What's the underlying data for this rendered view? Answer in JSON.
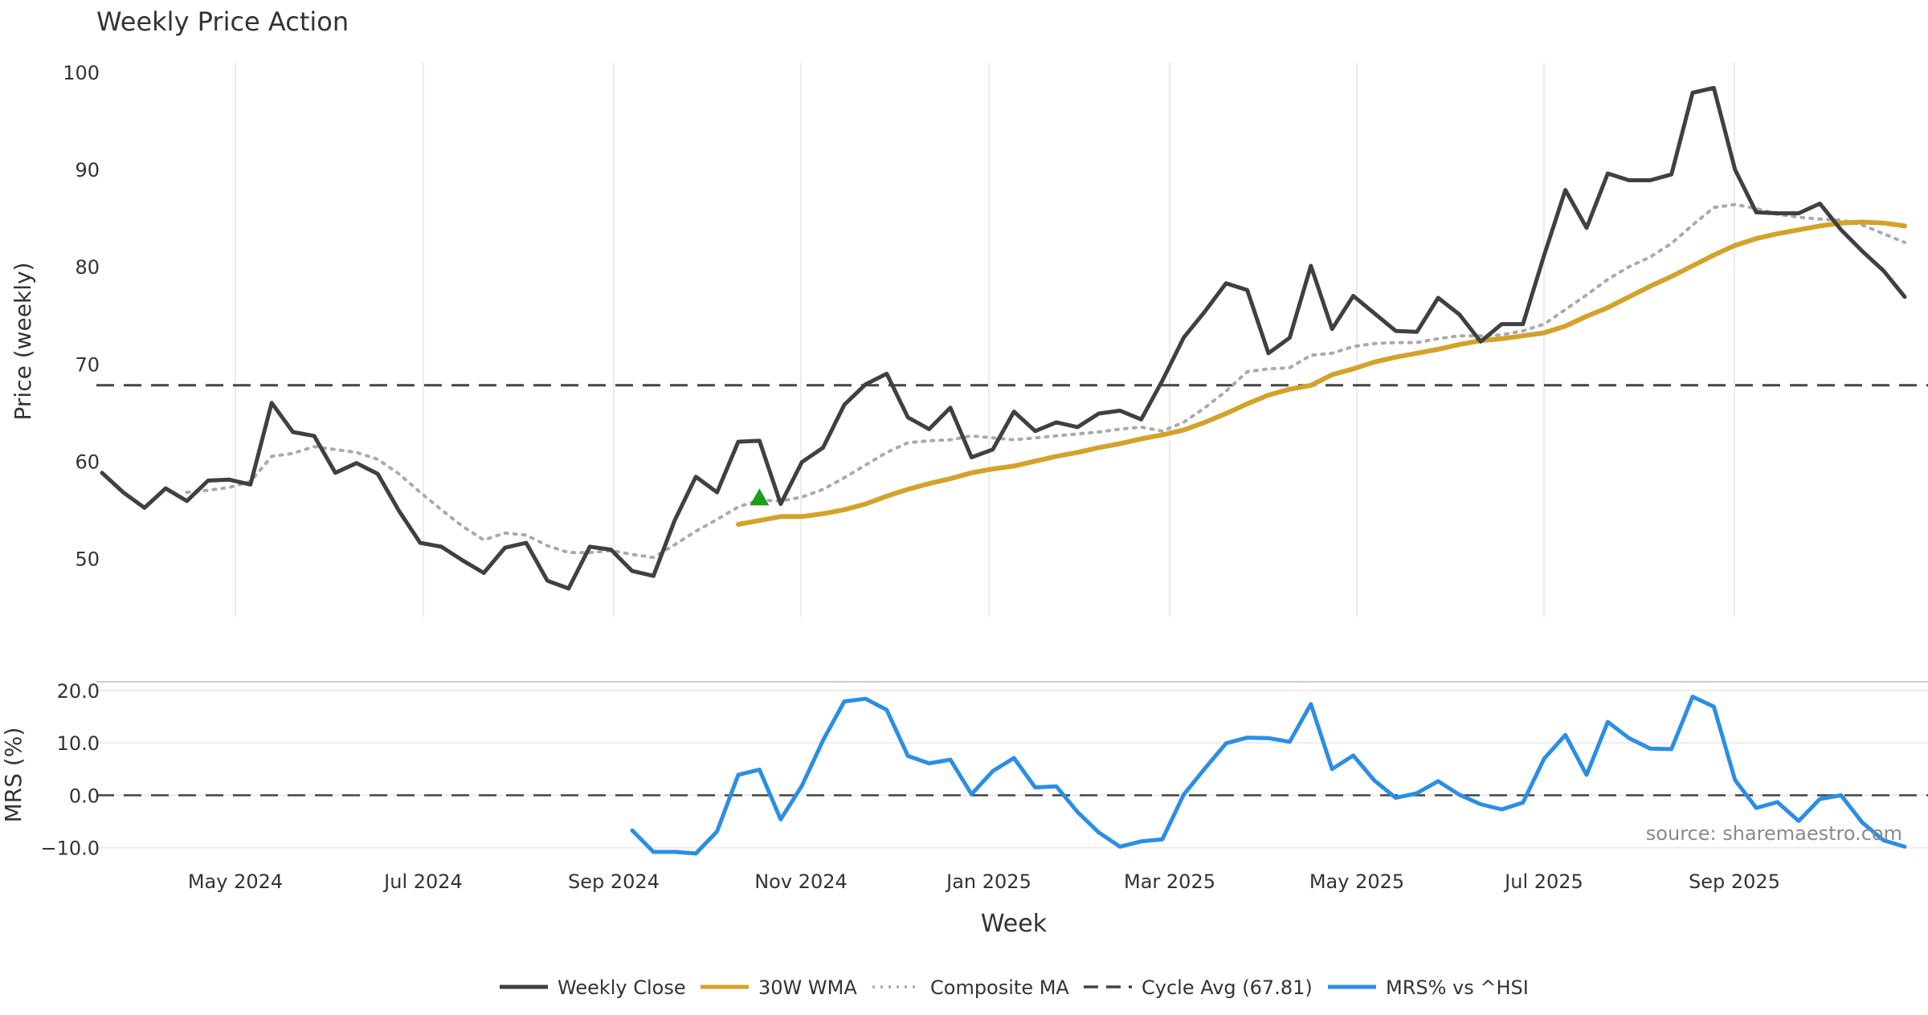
{
  "chart_data": {
    "type": "line",
    "title": "Weekly Price Action",
    "source": "source: sharemaestro.com",
    "xlabel": "Week",
    "x_ticks": [
      "May 2024",
      "Jul 2024",
      "Sep 2024",
      "Nov 2024",
      "Jan 2025",
      "Mar 2025",
      "May 2025",
      "Jul 2025",
      "Sep 2025"
    ],
    "price_panel": {
      "ylabel": "Price (weekly)",
      "ylim": [
        44,
        101
      ],
      "y_ticks": [
        50,
        60,
        70,
        80,
        90,
        100
      ],
      "cycle_avg": 67.81,
      "series": [
        {
          "name": "Weekly Close",
          "color": "#404040",
          "style": "solid",
          "start_index": 0,
          "values": [
            58.8,
            56.8,
            55.2,
            57.2,
            55.9,
            58.0,
            58.1,
            57.6,
            66.0,
            63.0,
            62.6,
            58.8,
            59.8,
            58.7,
            54.9,
            51.6,
            51.2,
            49.8,
            48.5,
            51.1,
            51.6,
            47.7,
            46.9,
            51.2,
            50.9,
            48.7,
            48.2,
            53.9,
            58.4,
            56.8,
            62.0,
            62.1,
            55.6,
            59.9,
            61.4,
            65.8,
            67.9,
            69.0,
            64.5,
            63.3,
            65.5,
            60.4,
            61.2,
            65.1,
            63.1,
            64.0,
            63.5,
            64.9,
            65.2,
            64.3,
            68.3,
            72.7,
            75.4,
            78.3,
            77.6,
            71.1,
            72.7,
            80.1,
            73.6,
            77.0,
            75.2,
            73.4,
            73.3,
            76.8,
            75.1,
            72.3,
            74.1,
            74.1,
            81.2,
            87.9,
            84.0,
            89.6,
            88.9,
            88.9,
            89.5,
            97.9,
            98.4,
            90.0,
            85.6,
            85.5,
            85.5,
            86.5,
            83.8,
            81.6,
            79.6,
            76.9
          ]
        },
        {
          "name": "30W WMA",
          "color": "#d4a22b",
          "style": "solid",
          "start_index": 30,
          "values": [
            53.5,
            53.9,
            54.3,
            54.3,
            54.6,
            55.0,
            55.6,
            56.4,
            57.1,
            57.7,
            58.2,
            58.8,
            59.2,
            59.5,
            60.0,
            60.5,
            60.9,
            61.4,
            61.8,
            62.3,
            62.7,
            63.2,
            64.0,
            64.9,
            65.9,
            66.8,
            67.4,
            67.8,
            68.9,
            69.5,
            70.2,
            70.7,
            71.1,
            71.5,
            72.0,
            72.4,
            72.6,
            72.9,
            73.2,
            73.9,
            74.9,
            75.8,
            76.9,
            78.0,
            79.0,
            80.1,
            81.2,
            82.2,
            82.9,
            83.4,
            83.8,
            84.2,
            84.5,
            84.6,
            84.5,
            84.2
          ]
        },
        {
          "name": "Composite MA",
          "color": "#aaaaaa",
          "style": "dotted",
          "start_index": 4,
          "values": [
            56.8,
            57.0,
            57.3,
            57.9,
            60.5,
            60.8,
            61.5,
            61.2,
            60.9,
            60.2,
            58.7,
            56.8,
            55.0,
            53.3,
            51.9,
            52.6,
            52.4,
            51.3,
            50.6,
            50.6,
            50.8,
            50.4,
            50.1,
            51.4,
            52.8,
            54.0,
            55.3,
            56.0,
            55.9,
            56.3,
            57.1,
            58.3,
            59.6,
            60.9,
            61.9,
            62.1,
            62.2,
            62.6,
            62.4,
            62.2,
            62.4,
            62.6,
            62.8,
            63.0,
            63.3,
            63.5,
            63.1,
            64.0,
            65.5,
            67.2,
            69.2,
            69.5,
            69.6,
            70.9,
            71.1,
            71.8,
            72.1,
            72.2,
            72.2,
            72.6,
            72.9,
            72.9,
            73.0,
            73.4,
            74.1,
            75.6,
            77.1,
            78.7,
            80.0,
            81.0,
            82.4,
            84.3,
            86.1,
            86.4,
            86.0,
            85.4,
            85.1,
            84.9,
            84.8,
            84.3,
            83.4,
            82.5
          ]
        }
      ],
      "marker": {
        "shape": "triangle-up",
        "color": "#1a9f1a",
        "index": 31,
        "value": 56.2
      }
    },
    "mrs_panel": {
      "ylabel": "MRS (%)",
      "ylim": [
        -12.5,
        21.5
      ],
      "y_ticks": [
        20.0,
        10.0,
        0.0,
        -10.0
      ],
      "y_tick_labels": [
        "20.0",
        "10.0",
        "0.0",
        "−10.0"
      ],
      "zero_line": 0,
      "series": [
        {
          "name": "MRS% vs ^HSI",
          "color": "#2b8ee6",
          "style": "solid",
          "start_index": 25,
          "values": [
            -6.7,
            -10.8,
            -10.8,
            -11.1,
            -6.9,
            3.9,
            4.9,
            -4.6,
            1.8,
            10.5,
            17.9,
            18.4,
            16.3,
            7.5,
            6.1,
            6.8,
            0.2,
            4.6,
            7.1,
            1.5,
            1.7,
            -3.2,
            -7.1,
            -9.8,
            -8.8,
            -8.4,
            0.1,
            5.1,
            9.9,
            11.0,
            10.9,
            10.2,
            17.4,
            5.0,
            7.6,
            2.8,
            -0.5,
            0.4,
            2.7,
            0.1,
            -1.7,
            -2.7,
            -1.4,
            7.0,
            11.5,
            3.9,
            14.0,
            10.9,
            8.9,
            8.8,
            18.8,
            16.9,
            2.9,
            -2.4,
            -1.3,
            -4.9,
            -0.7,
            0.0,
            -5.2,
            -8.6,
            -9.8
          ]
        }
      ]
    },
    "legend": {
      "position": "bottom-center",
      "items": [
        {
          "label": "Weekly Close",
          "color": "#404040",
          "style": "solid"
        },
        {
          "label": "30W WMA",
          "color": "#d4a22b",
          "style": "solid"
        },
        {
          "label": "Composite MA",
          "color": "#aaaaaa",
          "style": "dotted"
        },
        {
          "label": "Cycle Avg (67.81)",
          "color": "#444444",
          "style": "dashed"
        },
        {
          "label": "MRS% vs ^HSI",
          "color": "#2b8ee6",
          "style": "solid"
        }
      ]
    }
  }
}
